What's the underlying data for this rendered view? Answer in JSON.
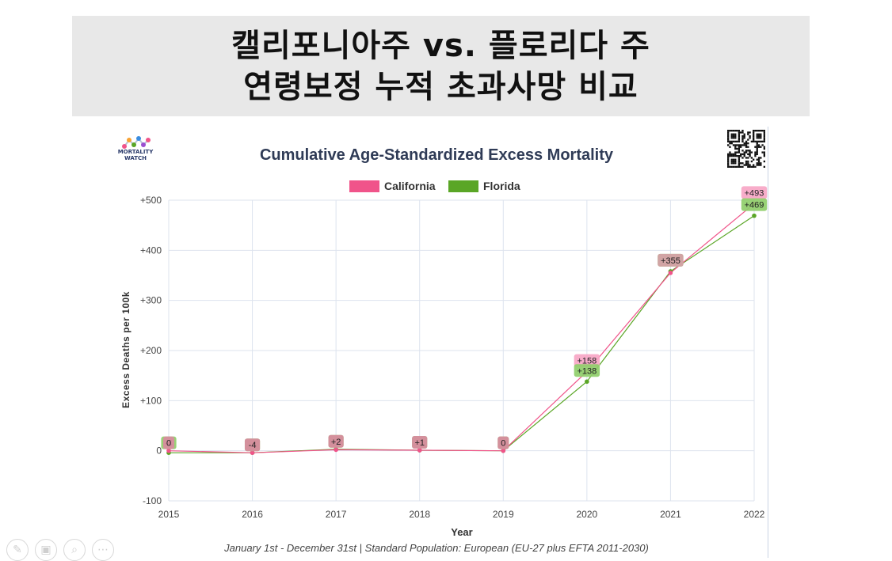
{
  "banner": {
    "line1": "캘리포니아주 vs. 플로리다 주",
    "line2": "연령보정 누적 초과사망 비교"
  },
  "logo": {
    "text_top": "MORTALITY",
    "text_bottom": "WATCH"
  },
  "footer_icons": [
    "pen-icon",
    "slides-icon",
    "zoom-icon",
    "more-icon"
  ],
  "chart_data": {
    "type": "line",
    "title": "Cumulative Age-Standardized Excess Mortality",
    "xlabel": "Year",
    "ylabel": "Excess Deaths per 100k",
    "caption": "January 1st - December 31st | Standard Population: European (EU-27 plus EFTA 2011-2030)",
    "x": [
      "2015",
      "2016",
      "2017",
      "2018",
      "2019",
      "2020",
      "2021",
      "2022"
    ],
    "ylim": [
      -100,
      500
    ],
    "yticks": [
      {
        "value": 500,
        "label": "+500"
      },
      {
        "value": 400,
        "label": "+400"
      },
      {
        "value": 300,
        "label": "+300"
      },
      {
        "value": 200,
        "label": "+200"
      },
      {
        "value": 100,
        "label": "+100"
      },
      {
        "value": 0,
        "label": "0"
      },
      {
        "value": -100,
        "label": "-100"
      }
    ],
    "legend_position": "top-center",
    "grid": true,
    "series": [
      {
        "name": "California",
        "color": "#f0548a",
        "label_bg": "#f7a6c6",
        "values": [
          0,
          -4,
          2,
          1,
          0,
          158,
          355,
          493
        ],
        "labels": [
          "0",
          "-4",
          "+2",
          "+1",
          "0",
          "+158",
          "+355",
          "+493"
        ]
      },
      {
        "name": "Florida",
        "color": "#5aa626",
        "label_bg": "#8fce6a",
        "values": [
          -4,
          -4,
          3,
          1,
          0,
          138,
          358,
          469
        ],
        "labels": [
          "-4",
          "-4",
          "+3",
          "+1",
          "0",
          "+138",
          "+358",
          "+469"
        ]
      }
    ]
  }
}
